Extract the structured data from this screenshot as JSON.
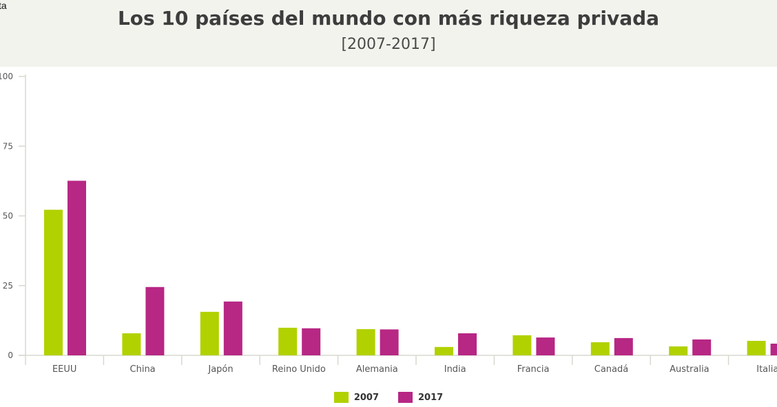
{
  "corner_text": "ta",
  "chart_data": {
    "type": "bar",
    "title": "Los 10 países del mundo con más riqueza privada",
    "subtitle": "[2007-2017]",
    "categories": [
      "EEUU",
      "China",
      "Japón",
      "Reino Unido",
      "Alemania",
      "India",
      "Francia",
      "Canadá",
      "Australia",
      "Italia"
    ],
    "series": [
      {
        "name": "2007",
        "color": "#b2d100",
        "values": [
          52.2,
          7.9,
          15.6,
          9.9,
          9.4,
          3.0,
          7.2,
          4.7,
          3.2,
          5.2
        ]
      },
      {
        "name": "2017",
        "color": "#b72784",
        "values": [
          62.6,
          24.5,
          19.3,
          9.7,
          9.3,
          7.9,
          6.4,
          6.2,
          5.7,
          4.2
        ]
      }
    ],
    "ylim": [
      0,
      100
    ],
    "yticks": [
      "0",
      "25",
      "50",
      "75",
      "100"
    ],
    "grid": false,
    "legend": "bottom-center"
  }
}
